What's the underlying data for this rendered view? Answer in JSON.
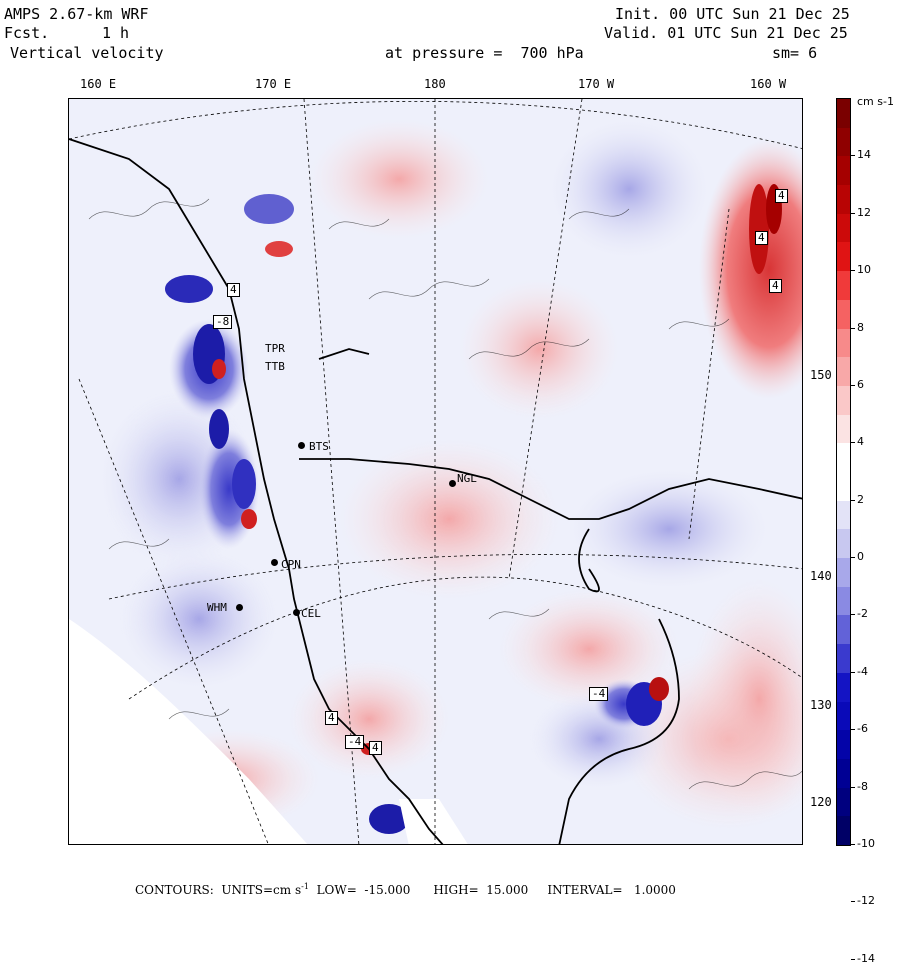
{
  "header": {
    "model": "AMPS 2.67-km WRF",
    "fcst_label": "Fcst.",
    "fcst_value": "1 h",
    "field": "Vertical velocity",
    "init": "Init. 00 UTC Sun 21 Dec 25",
    "valid": "Valid. 01 UTC Sun 21 Dec 25",
    "pressure": "at pressure =  700 hPa",
    "smoothing": "sm= 6"
  },
  "longitude_ticks_top": [
    "160 E",
    "170 E",
    "180",
    "170 W",
    "160 W"
  ],
  "latitude_ticks_right": [
    "150 W",
    "140 W",
    "130 W",
    "120 W"
  ],
  "colorbar": {
    "units": "cm s-1",
    "labels": [
      "14",
      "12",
      "10",
      "8",
      "6",
      "4",
      "2",
      "0",
      "-2",
      "-4",
      "-6",
      "-8",
      "-10",
      "-12",
      "-14"
    ],
    "colors": [
      "#7a0000",
      "#8f0000",
      "#a50000",
      "#b80404",
      "#cc0a0a",
      "#e01414",
      "#f03a3a",
      "#f56262",
      "#f78a8a",
      "#f8a8a8",
      "#fac8c8",
      "#fbe3e3",
      "#ffffff",
      "#ffffff",
      "#e3e3f7",
      "#c8c8f0",
      "#a8a8ea",
      "#8a8ae3",
      "#6262d8",
      "#3a3ace",
      "#1414c4",
      "#0a0ab8",
      "#0404a8",
      "#000094",
      "#00007f",
      "#000066"
    ]
  },
  "stations": [
    {
      "name": "BTS"
    },
    {
      "name": "NGL"
    },
    {
      "name": "CPN"
    },
    {
      "name": "WHM"
    },
    {
      "name": "CEL"
    },
    {
      "name": "TPR"
    },
    {
      "name": "TTB"
    }
  ],
  "contour_labels": [
    "4",
    "4",
    "4",
    "4",
    "-4",
    "-8",
    "4",
    "-4",
    "4"
  ],
  "footer": {
    "contours_label": "CONTOURS:",
    "units_label": "UNITS=cm s",
    "units_exp": "-1",
    "low": "LOW=  -15.000",
    "high": "HIGH=  15.000",
    "interval": "INTERVAL=   1.0000"
  }
}
